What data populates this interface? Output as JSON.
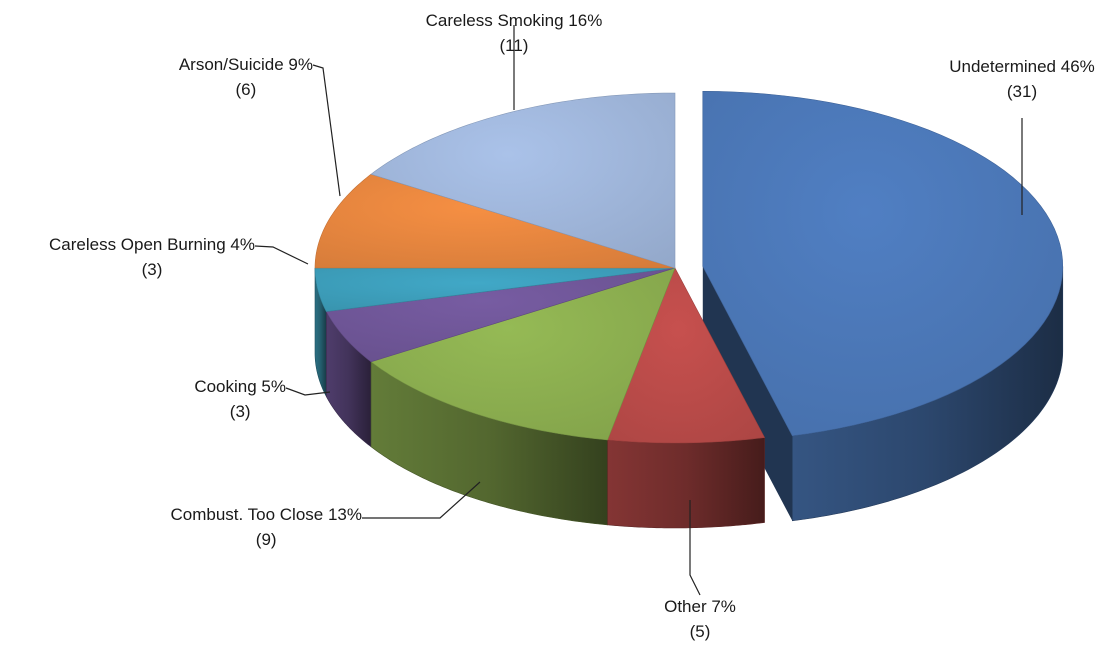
{
  "chart_data": {
    "type": "pie",
    "title": "",
    "slices": [
      {
        "label": "Undetermined",
        "percent": 46,
        "count": 31,
        "color": "#4a76b5"
      },
      {
        "label": "Other",
        "percent": 7,
        "count": 5,
        "color": "#b84a48"
      },
      {
        "label": "Combust. Too Close",
        "percent": 13,
        "count": 9,
        "color": "#8aac4f"
      },
      {
        "label": "Cooking",
        "percent": 5,
        "count": 3,
        "color": "#6e5596"
      },
      {
        "label": "Careless Open Burning",
        "percent": 4,
        "count": 3,
        "color": "#3c9cb8"
      },
      {
        "label": "Arson/Suicide",
        "percent": 9,
        "count": 6,
        "color": "#e4843e"
      },
      {
        "label": "Careless Smoking",
        "percent": 16,
        "count": 11,
        "color": "#9db4d8"
      }
    ],
    "legend": "none",
    "style": "3d-exploded"
  }
}
